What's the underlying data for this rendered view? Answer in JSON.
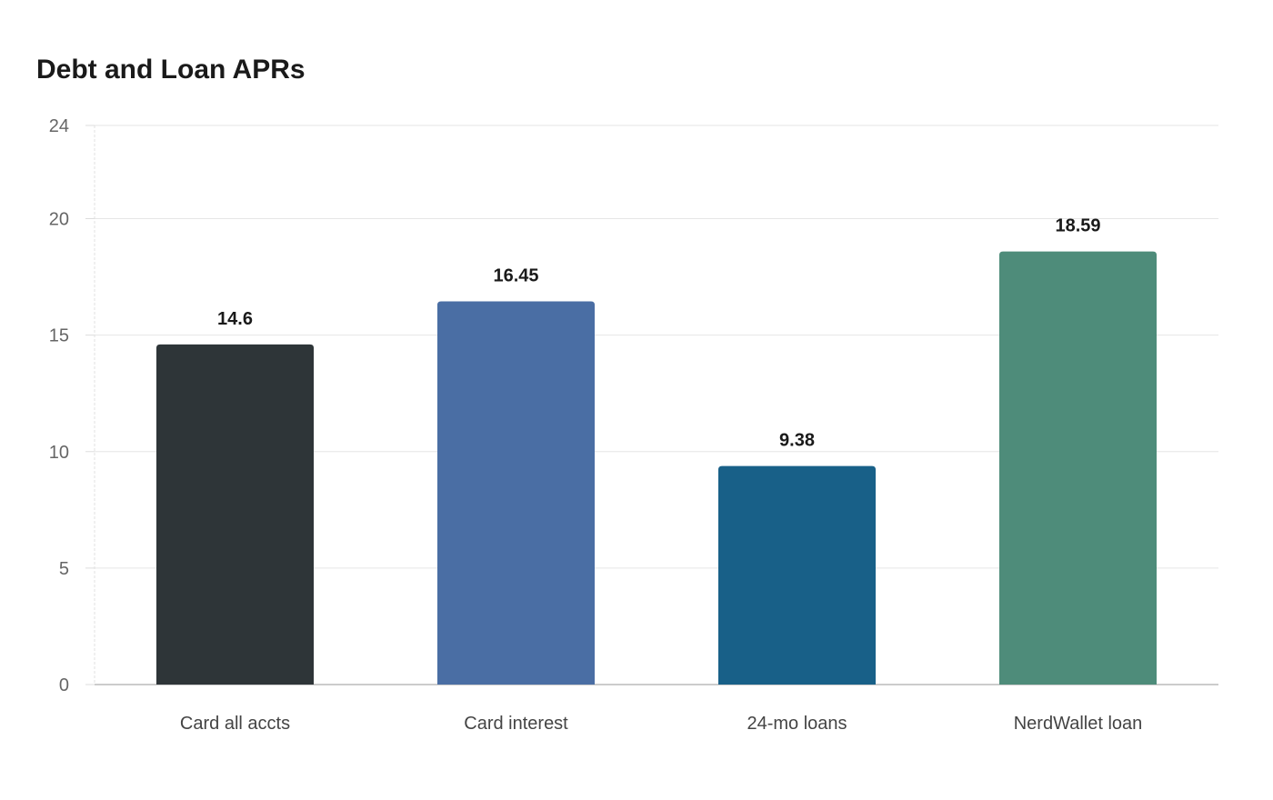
{
  "chart_data": {
    "type": "bar",
    "title": "Debt and Loan APRs",
    "xlabel": "",
    "ylabel": "",
    "categories": [
      "Card all accts",
      "Card interest",
      "24-mo loans",
      "NerdWallet loan"
    ],
    "values": [
      14.6,
      16.45,
      9.38,
      18.59
    ],
    "data_labels": [
      "14.6",
      "16.45",
      "9.38",
      "18.59"
    ],
    "colors": [
      "#2e3538",
      "#4a6ea4",
      "#186088",
      "#4e8c7a"
    ],
    "ylim": [
      0,
      24
    ],
    "yticks": [
      0,
      5,
      10,
      15,
      20,
      24
    ],
    "grid": true,
    "legend": "none"
  }
}
